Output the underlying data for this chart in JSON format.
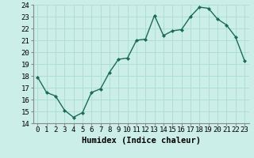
{
  "x": [
    0,
    1,
    2,
    3,
    4,
    5,
    6,
    7,
    8,
    9,
    10,
    11,
    12,
    13,
    14,
    15,
    16,
    17,
    18,
    19,
    20,
    21,
    22,
    23
  ],
  "y": [
    17.9,
    16.6,
    16.3,
    15.1,
    14.5,
    14.9,
    16.6,
    16.9,
    18.3,
    19.4,
    19.5,
    21.0,
    21.1,
    23.1,
    21.4,
    21.8,
    21.9,
    23.0,
    23.8,
    23.7,
    22.8,
    22.3,
    21.3,
    19.3
  ],
  "line_color": "#1a6b5a",
  "marker": "D",
  "marker_size": 2.0,
  "bg_color": "#cceee8",
  "grid_color": "#aaddcc",
  "xlabel": "Humidex (Indice chaleur)",
  "ylim": [
    14,
    24
  ],
  "xlim": [
    -0.5,
    23.5
  ],
  "yticks": [
    14,
    15,
    16,
    17,
    18,
    19,
    20,
    21,
    22,
    23,
    24
  ],
  "xtick_labels": [
    "0",
    "1",
    "2",
    "3",
    "4",
    "5",
    "6",
    "7",
    "8",
    "9",
    "10",
    "11",
    "12",
    "13",
    "14",
    "15",
    "16",
    "17",
    "18",
    "19",
    "20",
    "21",
    "22",
    "23"
  ],
  "xlabel_fontsize": 7.5,
  "tick_fontsize": 6.5,
  "line_width": 1.0
}
